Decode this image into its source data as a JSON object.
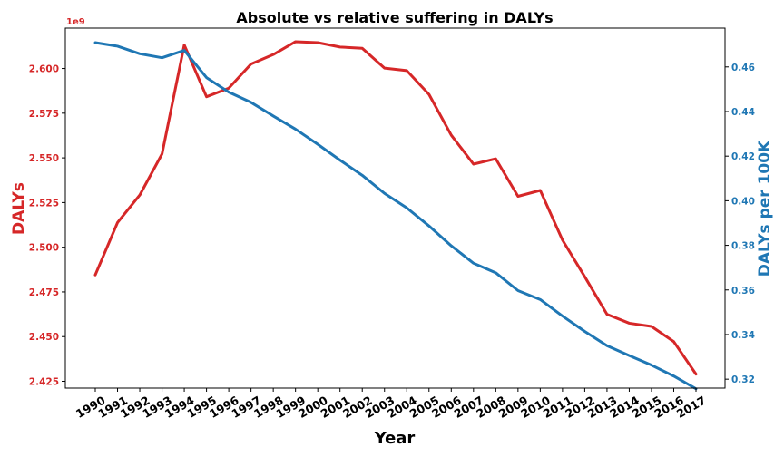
{
  "chart_data": {
    "type": "line",
    "title": "Absolute vs relative suffering in DALYs",
    "xlabel": "Year",
    "ylabel_left": "DALYs",
    "ylabel_right": "DALYs per 100K",
    "left_axis_offset": "1e9",
    "x": [
      1990,
      1991,
      1992,
      1993,
      1994,
      1995,
      1996,
      1997,
      1998,
      1999,
      2000,
      2001,
      2002,
      2003,
      2004,
      2005,
      2006,
      2007,
      2008,
      2009,
      2010,
      2011,
      2012,
      2013,
      2014,
      2015,
      2016,
      2017
    ],
    "series": [
      {
        "name": "DALYs",
        "axis": "left",
        "color": "#d62728",
        "values": [
          2.4845,
          2.5138,
          2.5292,
          2.5522,
          2.6132,
          2.5842,
          2.589,
          2.6025,
          2.6078,
          2.615,
          2.6145,
          2.612,
          2.6113,
          2.6002,
          2.5988,
          2.5855,
          2.5627,
          2.5465,
          2.5495,
          2.5285,
          2.5318,
          2.504,
          2.4835,
          2.4625,
          2.4575,
          2.4557,
          2.4472,
          2.429
        ]
      },
      {
        "name": "DALYs per 100K",
        "axis": "right",
        "color": "#1f77b4",
        "values": [
          0.4709,
          0.4693,
          0.4659,
          0.4641,
          0.4674,
          0.4552,
          0.4487,
          0.4441,
          0.438,
          0.4321,
          0.4253,
          0.4182,
          0.4114,
          0.4033,
          0.3968,
          0.3887,
          0.3798,
          0.372,
          0.3677,
          0.3597,
          0.3557,
          0.3483,
          0.3414,
          0.335,
          0.3306,
          0.3263,
          0.3214,
          0.3157
        ]
      }
    ],
    "ylim_left": [
      2.4212,
      2.6226
    ],
    "ylim_right": [
      0.316,
      0.4774
    ],
    "yticks_left": [
      "2.425",
      "2.450",
      "2.475",
      "2.500",
      "2.525",
      "2.550",
      "2.575",
      "2.600"
    ],
    "yticks_right": [
      "0.32",
      "0.34",
      "0.36",
      "0.38",
      "0.40",
      "0.42",
      "0.44",
      "0.46"
    ],
    "grid": false,
    "legend": "none"
  }
}
